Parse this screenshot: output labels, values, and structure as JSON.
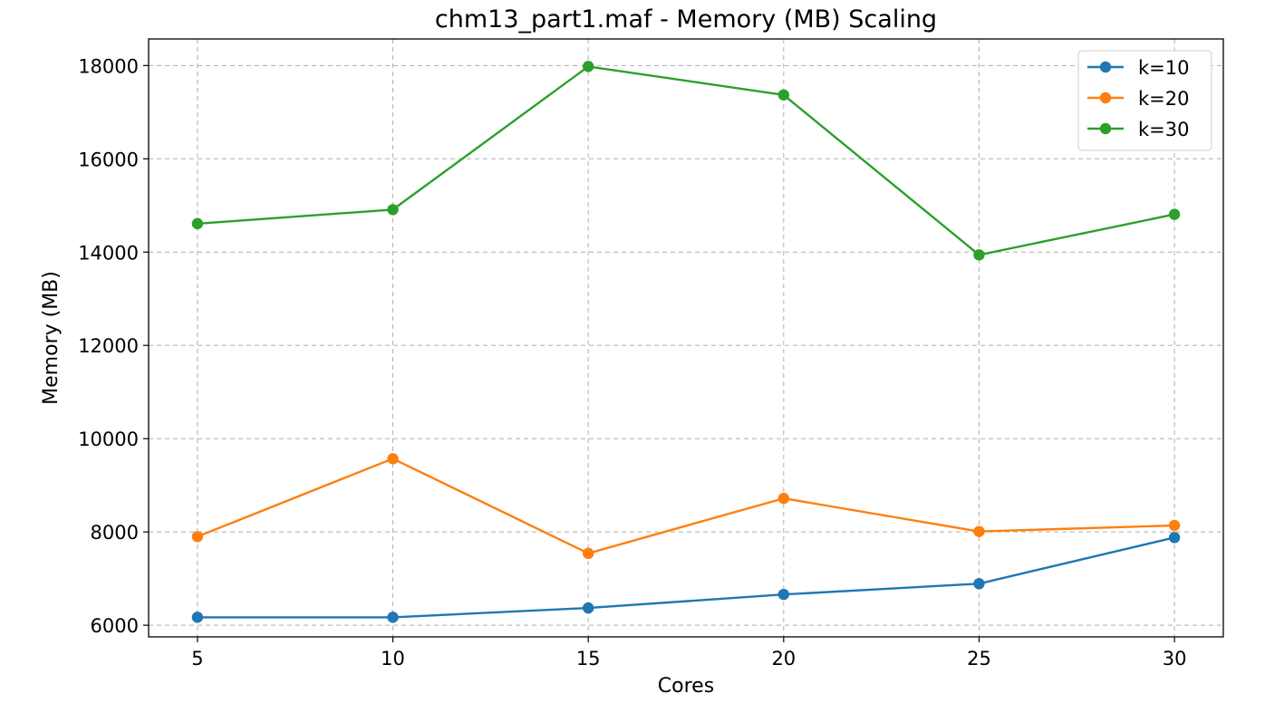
{
  "chart_data": {
    "type": "line",
    "title": "chm13_part1.maf - Memory (MB) Scaling",
    "xlabel": "Cores",
    "ylabel": "Memory (MB)",
    "x": [
      5,
      10,
      15,
      20,
      25,
      30
    ],
    "xticks": [
      "5",
      "10",
      "15",
      "20",
      "25",
      "30"
    ],
    "yticks": [
      "6000",
      "8000",
      "10000",
      "12000",
      "14000",
      "16000",
      "18000"
    ],
    "xlim": [
      3.75,
      31.25
    ],
    "ylim": [
      5750,
      18570
    ],
    "grid": true,
    "legend_position": "top-right",
    "series": [
      {
        "name": "k=10",
        "color": "#1f77b4",
        "values": [
          6170,
          6170,
          6370,
          6660,
          6890,
          7880
        ]
      },
      {
        "name": "k=20",
        "color": "#ff7f0e",
        "values": [
          7900,
          9570,
          7540,
          8720,
          8010,
          8140
        ]
      },
      {
        "name": "k=30",
        "color": "#2ca02c",
        "values": [
          14610,
          14910,
          17980,
          17370,
          13940,
          14810
        ]
      }
    ]
  }
}
